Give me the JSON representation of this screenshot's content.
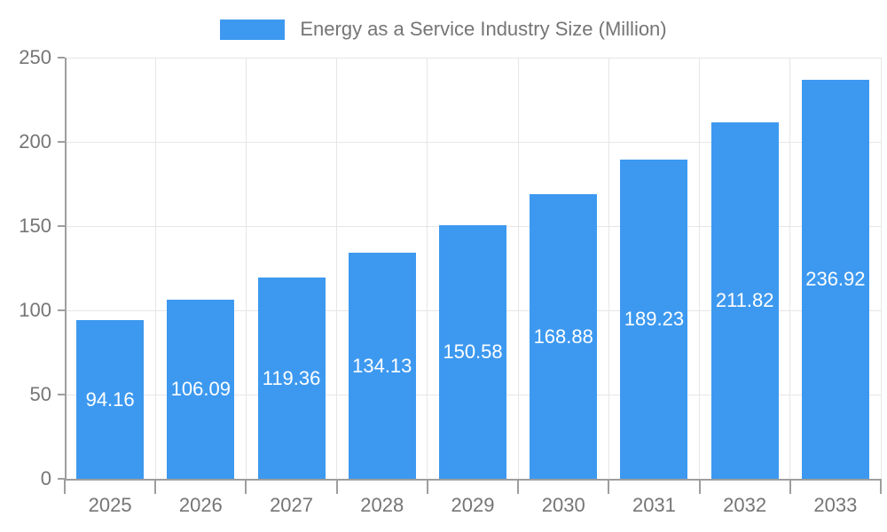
{
  "legend": {
    "label": "Energy as a Service Industry Size (Million)"
  },
  "chart_data": {
    "type": "bar",
    "title": "Energy as a Service Industry Size (Million)",
    "series_name": "Energy as a Service Industry Size (Million)",
    "categories": [
      "2025",
      "2026",
      "2027",
      "2028",
      "2029",
      "2030",
      "2031",
      "2032",
      "2033"
    ],
    "values": [
      94.16,
      106.09,
      119.36,
      134.13,
      150.58,
      168.88,
      189.23,
      211.82,
      236.92
    ],
    "value_labels": [
      "94.16",
      "106.09",
      "119.36",
      "134.13",
      "150.58",
      "168.88",
      "189.23",
      "211.82",
      "236.92"
    ],
    "xlabel": "",
    "ylabel": "",
    "ylim": [
      0,
      250
    ],
    "y_ticks": [
      0,
      50,
      100,
      150,
      200,
      250
    ],
    "grid": true,
    "legend_position": "top-center",
    "value_label_position": "inside-center"
  },
  "colors": {
    "bar": "#3d99f0",
    "grid": "#e6e6e6",
    "axis": "#9e9e9e",
    "text": "#757575",
    "value_label": "#ffffff",
    "background": "#ffffff"
  }
}
